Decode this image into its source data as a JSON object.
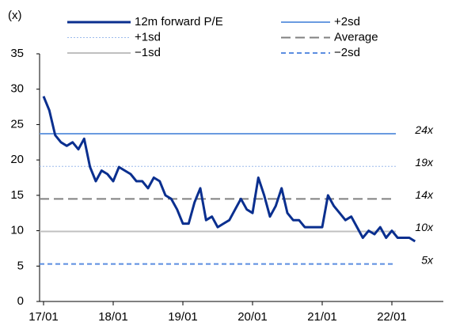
{
  "chart_data": {
    "type": "line",
    "unit_label": "(x)",
    "x": [
      "17/01",
      "17/02",
      "17/03",
      "17/04",
      "17/05",
      "17/06",
      "17/07",
      "17/08",
      "17/09",
      "17/10",
      "17/11",
      "17/12",
      "18/01",
      "18/02",
      "18/03",
      "18/04",
      "18/05",
      "18/06",
      "18/07",
      "18/08",
      "18/09",
      "18/10",
      "18/11",
      "18/12",
      "19/01",
      "19/02",
      "19/03",
      "19/04",
      "19/05",
      "19/06",
      "19/07",
      "19/08",
      "19/09",
      "19/10",
      "19/11",
      "19/12",
      "20/01",
      "20/02",
      "20/03",
      "20/04",
      "20/05",
      "20/06",
      "20/07",
      "20/08",
      "20/09",
      "20/10",
      "20/11",
      "20/12",
      "21/01",
      "21/02",
      "21/03",
      "21/04",
      "21/05",
      "21/06",
      "21/07",
      "21/08",
      "21/09",
      "21/10",
      "21/11",
      "21/12",
      "22/01",
      "22/02",
      "22/03",
      "22/04",
      "22/05"
    ],
    "xticks": [
      "17/01",
      "18/01",
      "19/01",
      "20/01",
      "21/01",
      "22/01"
    ],
    "series": [
      {
        "name": "12m forward P/E",
        "color": "#0a2f8f",
        "values": [
          29,
          27,
          23.5,
          22.5,
          22,
          22.5,
          21.5,
          23,
          19,
          17,
          18.5,
          18,
          17,
          19,
          18.5,
          18,
          17,
          17,
          16,
          17.5,
          17,
          15,
          14.5,
          13,
          11,
          11,
          14,
          16,
          11.5,
          12,
          10.5,
          11,
          11.5,
          13,
          14.5,
          13,
          12.5,
          17.5,
          15,
          12,
          13.5,
          16,
          12.5,
          11.5,
          11.5,
          10.5,
          10.5,
          10.5,
          10.5,
          15,
          13.5,
          12.5,
          11.5,
          12,
          10.5,
          9,
          10,
          9.5,
          10.5,
          9,
          10,
          9,
          9,
          9,
          8.5
        ]
      }
    ],
    "reference_lines": [
      {
        "name": "+2sd",
        "value": 23.7,
        "value_label": "24x",
        "color": "#6a9be0",
        "style": "solid"
      },
      {
        "name": "+1sd",
        "value": 19.1,
        "value_label": "19x",
        "color": "#9dbcec",
        "style": "dotted"
      },
      {
        "name": "Average",
        "value": 14.5,
        "value_label": "14x",
        "color": "#808080",
        "style": "dashed"
      },
      {
        "name": "−1sd",
        "value": 9.9,
        "value_label": "10x",
        "color": "#c0c0c0",
        "style": "solid"
      },
      {
        "name": "−2sd",
        "value": 5.3,
        "value_label": "5x",
        "color": "#5b8de0",
        "style": "short-dashed"
      }
    ],
    "ylim": [
      0,
      35
    ],
    "yticks": [
      0,
      5,
      10,
      15,
      20,
      25,
      30,
      35
    ]
  }
}
